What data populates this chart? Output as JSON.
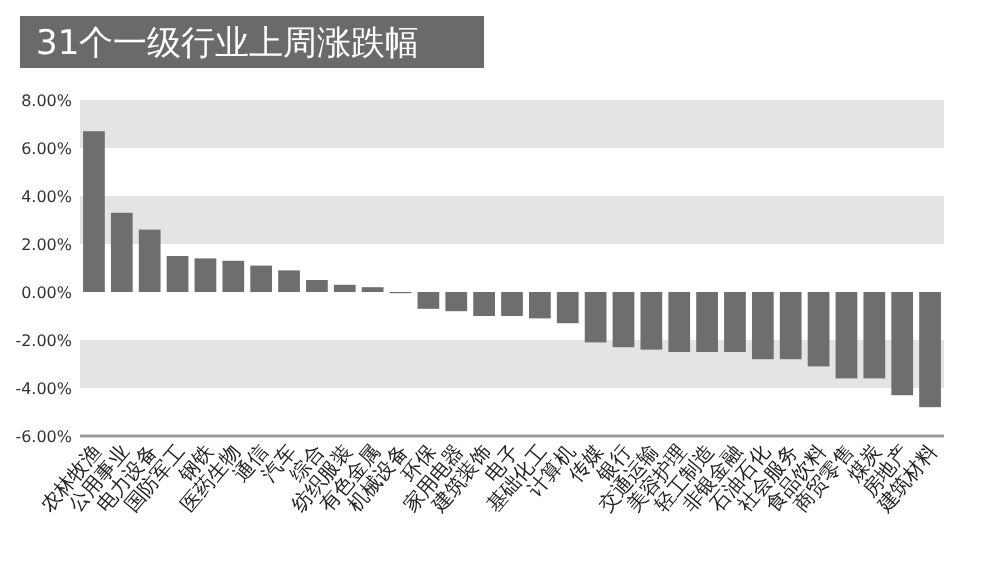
{
  "chart_data": {
    "type": "bar",
    "title": "31个一级行业上周涨跌幅",
    "categories": [
      "农林牧渔",
      "公用事业",
      "电力设备",
      "国防军工",
      "钢铁",
      "医药生物",
      "通信",
      "汽车",
      "综合",
      "纺织服装",
      "有色金属",
      "机械设备",
      "环保",
      "家用电器",
      "建筑装饰",
      "电子",
      "基础化工",
      "计算机",
      "传媒",
      "银行",
      "交通运输",
      "美容护理",
      "轻工制造",
      "非银金融",
      "石油石化",
      "社会服务",
      "食品饮料",
      "商贸零售",
      "煤炭",
      "房地产",
      "建筑材料"
    ],
    "values": [
      6.7,
      3.3,
      2.6,
      1.5,
      1.4,
      1.3,
      1.1,
      0.9,
      0.5,
      0.3,
      0.2,
      0.0,
      -0.7,
      -0.8,
      -1.0,
      -1.0,
      -1.1,
      -1.3,
      -2.1,
      -2.3,
      -2.4,
      -2.5,
      -2.5,
      -2.5,
      -2.8,
      -2.8,
      -3.1,
      -3.6,
      -3.6,
      -4.3,
      -4.8
    ],
    "color": "#6e6e6e",
    "ylim": [
      -6,
      8
    ],
    "yticks": [
      {
        "value": -6,
        "label": "-6.00%"
      },
      {
        "value": -4,
        "label": "-4.00%"
      },
      {
        "value": -2,
        "label": "-2.00%"
      },
      {
        "value": 0,
        "label": "0.00%"
      },
      {
        "value": 2,
        "label": "2.00%"
      },
      {
        "value": 4,
        "label": "4.00%"
      },
      {
        "value": 6,
        "label": "6.00%"
      },
      {
        "value": 8,
        "label": "8.00%"
      }
    ],
    "bands": [
      {
        "axis": "y",
        "from": 6,
        "to": 8,
        "color": "#e4e4e4"
      },
      {
        "axis": "y",
        "from": 2,
        "to": 4,
        "color": "#e4e4e4"
      },
      {
        "axis": "y",
        "from": -4,
        "to": -2,
        "color": "#e4e4e4"
      }
    ],
    "grid": false
  }
}
